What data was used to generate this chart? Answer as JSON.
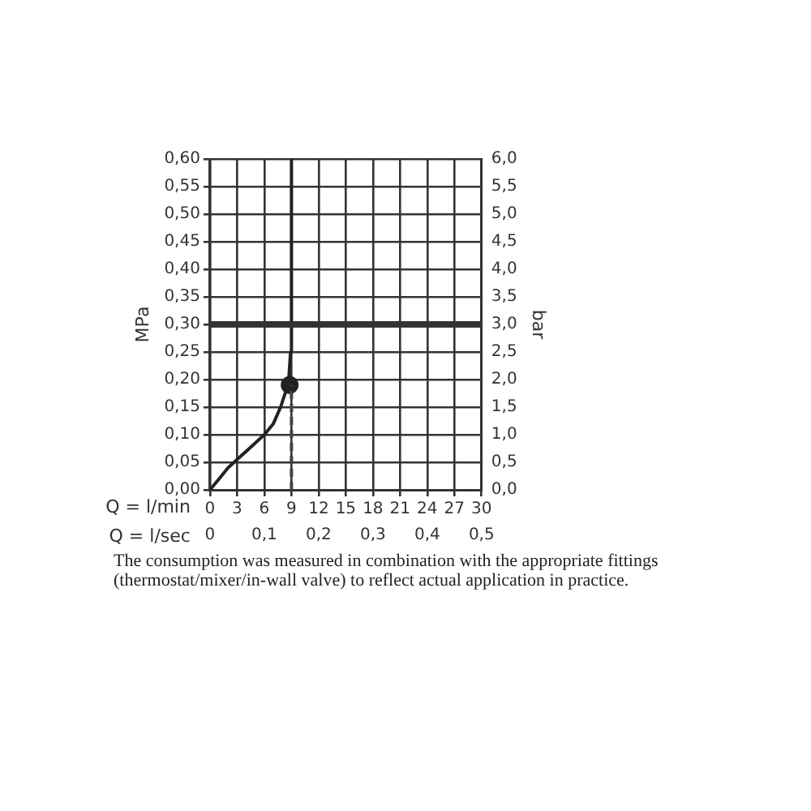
{
  "chart_data": {
    "type": "line",
    "xlabel": "Q = l/min",
    "x2label": "Q = l/sec",
    "ylabel": "MPa",
    "y2label": "bar",
    "xlim": [
      0,
      30
    ],
    "xticks": [
      0,
      3,
      6,
      9,
      12,
      15,
      18,
      21,
      24,
      27,
      30
    ],
    "x2lim": [
      0,
      0.5
    ],
    "x2ticks": [
      {
        "value": 0,
        "label": "0"
      },
      {
        "value": 0.1,
        "label": "0,1"
      },
      {
        "value": 0.2,
        "label": "0,2"
      },
      {
        "value": 0.3,
        "label": "0,3"
      },
      {
        "value": 0.4,
        "label": "0,4"
      },
      {
        "value": 0.5,
        "label": "0,5"
      }
    ],
    "ylim": [
      0,
      0.6
    ],
    "yticks": [
      {
        "value": 0,
        "label": "0,00"
      },
      {
        "value": 0.05,
        "label": "0,05"
      },
      {
        "value": 0.1,
        "label": "0,10"
      },
      {
        "value": 0.15,
        "label": "0,15"
      },
      {
        "value": 0.2,
        "label": "0,20"
      },
      {
        "value": 0.25,
        "label": "0,25"
      },
      {
        "value": 0.3,
        "label": "0,30"
      },
      {
        "value": 0.35,
        "label": "0,35"
      },
      {
        "value": 0.4,
        "label": "0,40"
      },
      {
        "value": 0.45,
        "label": "0,45"
      },
      {
        "value": 0.5,
        "label": "0,50"
      },
      {
        "value": 0.55,
        "label": "0,55"
      },
      {
        "value": 0.6,
        "label": "0,60"
      }
    ],
    "y2lim": [
      0,
      6
    ],
    "y2ticks": [
      {
        "value": 0,
        "label": "0,0"
      },
      {
        "value": 0.5,
        "label": "0,5"
      },
      {
        "value": 1,
        "label": "1,0"
      },
      {
        "value": 1.5,
        "label": "1,5"
      },
      {
        "value": 2,
        "label": "2,0"
      },
      {
        "value": 2.5,
        "label": "2,5"
      },
      {
        "value": 3,
        "label": "3,0"
      },
      {
        "value": 3.5,
        "label": "3,5"
      },
      {
        "value": 4,
        "label": "4,0"
      },
      {
        "value": 4.5,
        "label": "4,5"
      },
      {
        "value": 5,
        "label": "5,0"
      },
      {
        "value": 5.5,
        "label": "5,5"
      },
      {
        "value": 6,
        "label": "6,0"
      }
    ],
    "grid": true,
    "legend": false,
    "series": [
      {
        "type": "line",
        "color": "#222222",
        "marker": "none",
        "line_style": "solid",
        "x": [
          0,
          1,
          2,
          3,
          4,
          5,
          6,
          7,
          7.8,
          8.3,
          8.7,
          8.9,
          9
        ],
        "values": [
          0,
          0.02,
          0.04,
          0.055,
          0.07,
          0.085,
          0.1,
          0.12,
          0.15,
          0.175,
          0.2,
          0.25,
          0.6
        ]
      },
      {
        "type": "line",
        "color": "#444444",
        "marker": "none",
        "line_style": "dashed",
        "x": [
          9,
          9
        ],
        "values": [
          0,
          0.19
        ]
      },
      {
        "type": "scatter",
        "color": "#222222",
        "marker": "circle",
        "x": [
          8.8
        ],
        "values": [
          0.19
        ]
      }
    ],
    "ref_lines": [
      {
        "axis": "y",
        "value": 0.3,
        "color": "#333333"
      }
    ],
    "annotations": [
      "The consumption was measured in combination with the appropriate fittings (thermostat/mixer/in-wall valve) to reflect actual application in practice."
    ]
  }
}
